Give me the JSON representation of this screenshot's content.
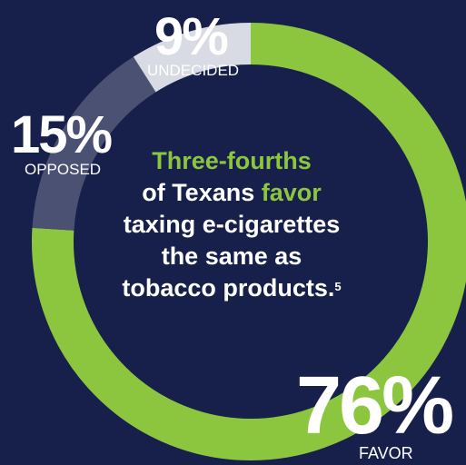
{
  "chart_data": {
    "type": "pie",
    "style": "donut",
    "slices": [
      {
        "label": "FAVOR",
        "value": 76,
        "value_text": "76%",
        "color": "#8cc63f"
      },
      {
        "label": "UNDECIDED",
        "value": 9,
        "value_text": "9%",
        "color": "#d9dbe4"
      },
      {
        "label": "OPPOSED",
        "value": 15,
        "value_text": "15%",
        "color": "#4b5173"
      }
    ]
  },
  "headline": {
    "line1": "Three-fourths",
    "line2_a": "of Texans ",
    "line2_b": "favor",
    "line3": "taxing e-cigarettes",
    "line4": "the same as",
    "line5": "tobacco products.",
    "footnote": "5"
  },
  "colors": {
    "background": "#17204a",
    "accent": "#8cc63f"
  }
}
